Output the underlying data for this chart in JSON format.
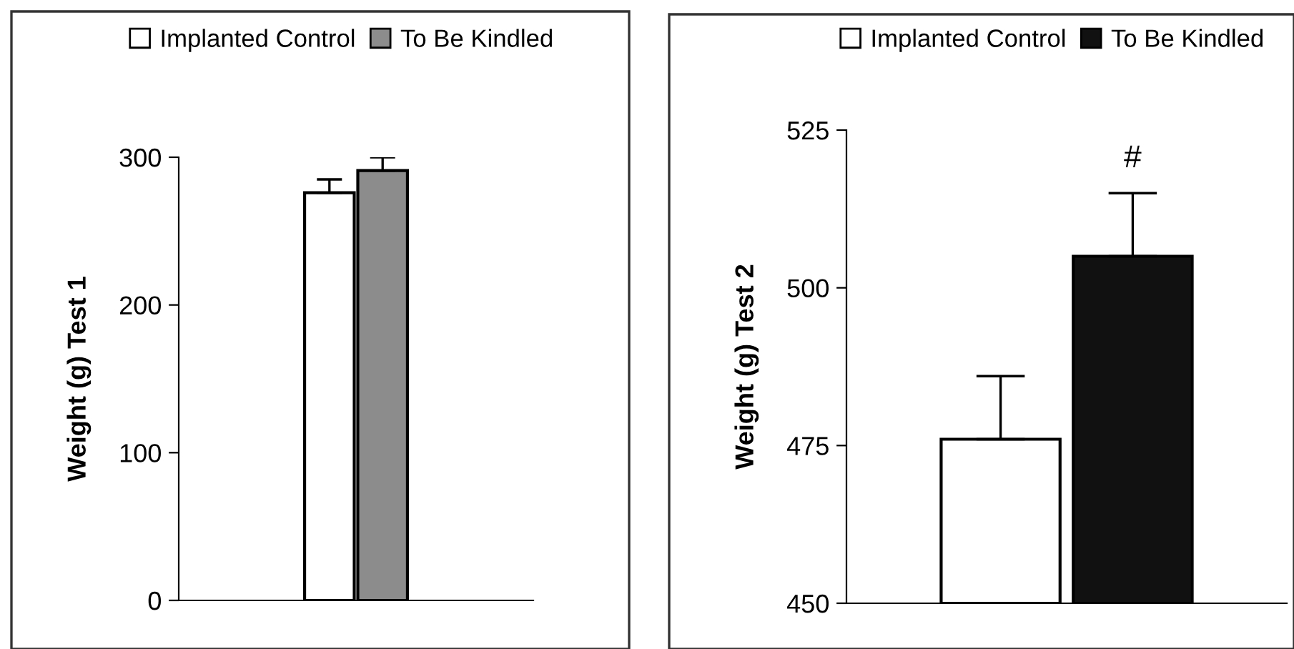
{
  "chart_data": [
    {
      "type": "bar",
      "ylabel": "Weight (g) Test 1",
      "categories": [
        null
      ],
      "ylim": [
        0,
        300
      ],
      "yticks": [
        0,
        100,
        200,
        300
      ],
      "legend": "top",
      "grid": false,
      "series": [
        {
          "name": "Implanted Control",
          "color": "#ffffff",
          "values": [
            276
          ],
          "errors": [
            9
          ]
        },
        {
          "name": "To Be Kindled",
          "color": "#8c8c8c",
          "values": [
            291
          ],
          "errors": [
            9
          ]
        }
      ]
    },
    {
      "type": "bar",
      "ylabel": "Weight (g) Test 2",
      "categories": [
        null
      ],
      "ylim": [
        450,
        525
      ],
      "yticks": [
        450,
        475,
        500,
        525
      ],
      "legend": "top",
      "grid": false,
      "annotations": [
        "#"
      ],
      "series": [
        {
          "name": "Implanted Control",
          "color": "#ffffff",
          "values": [
            476
          ],
          "errors": [
            10
          ]
        },
        {
          "name": "To Be Kindled",
          "color": "#111111",
          "values": [
            505
          ],
          "errors": [
            10
          ]
        }
      ]
    }
  ]
}
